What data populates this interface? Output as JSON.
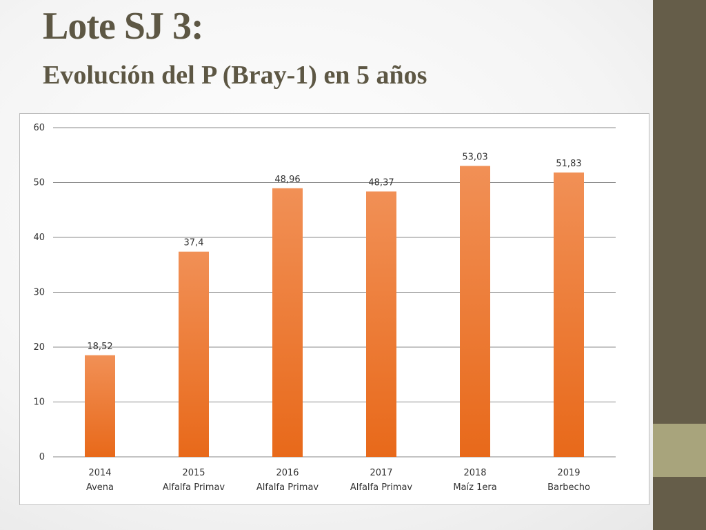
{
  "slide": {
    "title": "Lote SJ 3:",
    "subtitle": "Evolución del P (Bray-1) en 5 años"
  },
  "colors": {
    "bar_top": "#f19056",
    "bar_bottom": "#e8691a",
    "grid": "#8a8a8a",
    "sidebar": "#655d49",
    "sidebar_accent": "#a8a47c",
    "title": "#5d5744"
  },
  "chart_data": {
    "type": "bar",
    "categories": [
      [
        "2014",
        "Avena"
      ],
      [
        "2015",
        "Alfalfa Primav"
      ],
      [
        "2016",
        "Alfalfa Primav"
      ],
      [
        "2017",
        "Alfalfa Primav"
      ],
      [
        "2018",
        "Maíz 1era"
      ],
      [
        "2019",
        "Barbecho"
      ]
    ],
    "values": [
      18.52,
      37.4,
      48.96,
      48.37,
      53.03,
      51.83
    ],
    "data_labels": [
      "18,52",
      "37,4",
      "48,96",
      "48,37",
      "53,03",
      "51,83"
    ],
    "y_ticks": [
      0,
      10,
      20,
      30,
      40,
      50,
      60
    ],
    "ylim": [
      0,
      60
    ],
    "grid": true,
    "legend": "none"
  }
}
